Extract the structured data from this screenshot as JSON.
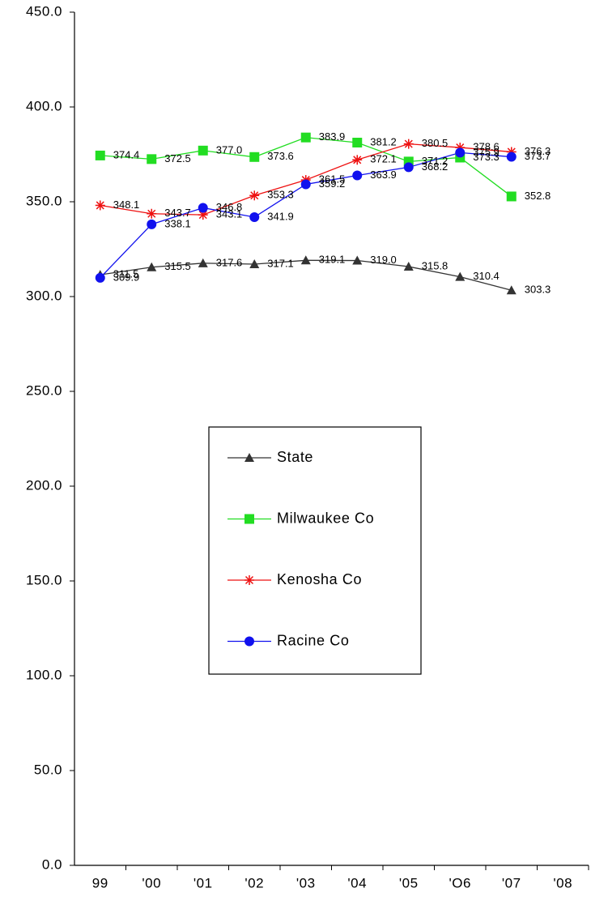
{
  "chart_data": {
    "type": "line",
    "categories": [
      "99",
      "'00",
      "'01",
      "'02",
      "'03",
      "'04",
      "'05",
      "'O6",
      "'07",
      "'08"
    ],
    "ylim": [
      0,
      450
    ],
    "yticks": [
      {
        "value": 0,
        "label": "0.0"
      },
      {
        "value": 50,
        "label": "50.0"
      },
      {
        "value": 100,
        "label": "100.0"
      },
      {
        "value": 150,
        "label": "150.0"
      },
      {
        "value": 200,
        "label": "200.0"
      },
      {
        "value": 250,
        "label": "250.0"
      },
      {
        "value": 300,
        "label": "300.0"
      },
      {
        "value": 350,
        "label": "350.0"
      },
      {
        "value": 400,
        "label": "400.0"
      },
      {
        "value": 450,
        "label": "450.0"
      }
    ],
    "grid": false,
    "legend": "center",
    "series": [
      {
        "name": "State",
        "color": "#333333",
        "marker": "triangle",
        "values": [
          311.5,
          315.5,
          317.6,
          317.1,
          319.1,
          319.0,
          315.8,
          310.4,
          303.3,
          null
        ],
        "value_labels": [
          "311.5",
          "315.5",
          "317.6",
          "317.1",
          "319.1",
          "319.0",
          "315.8",
          "310.4",
          "303.3",
          null
        ]
      },
      {
        "name": "Milwaukee Co",
        "color": "#22dd22",
        "marker": "square",
        "values": [
          374.4,
          372.5,
          377.0,
          373.6,
          383.9,
          381.2,
          371.2,
          373.3,
          352.8,
          null
        ],
        "value_labels": [
          "374.4",
          "372.5",
          "377.0",
          "373.6",
          "383.9",
          "381.2",
          "371.2",
          "373.3",
          "352.8",
          null
        ]
      },
      {
        "name": "Kenosha Co",
        "color": "#ee1111",
        "marker": "star",
        "values": [
          348.1,
          343.7,
          343.1,
          353.3,
          361.5,
          372.1,
          380.5,
          378.6,
          376.3,
          null
        ],
        "value_labels": [
          "348.1",
          "343.7",
          "343.1",
          "353.3",
          "361.5",
          "372.1",
          "380.5",
          "378.6",
          "376.3",
          null
        ]
      },
      {
        "name": "Racine Co",
        "color": "#1111ee",
        "marker": "circle",
        "values": [
          309.9,
          338.1,
          346.8,
          341.9,
          359.2,
          363.9,
          368.2,
          375.9,
          373.7,
          null
        ],
        "value_labels": [
          "309.9",
          "338.1",
          "346.8",
          "341.9",
          "359.2",
          "363.9",
          "368.2",
          "375.9",
          "373.7",
          null
        ]
      }
    ]
  }
}
